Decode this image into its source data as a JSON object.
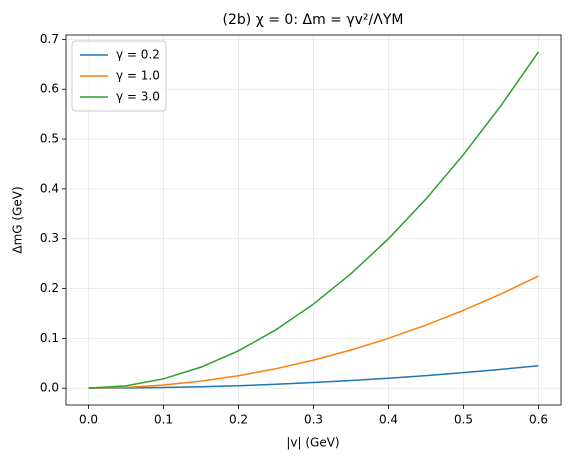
{
  "chart_data": {
    "type": "line",
    "title": "(2b) χ = 0: Δm = γv²/ΛYM",
    "xlabel": "|v| (GeV)",
    "ylabel": "ΔmG (GeV)",
    "x": [
      0,
      0.05,
      0.1,
      0.15,
      0.2,
      0.25,
      0.3,
      0.35,
      0.4,
      0.45,
      0.5,
      0.55,
      0.6
    ],
    "series": [
      {
        "name": "γ = 0.2",
        "color": "#1f77b4",
        "values": [
          0,
          0.0003,
          0.0013,
          0.0028,
          0.005,
          0.0078,
          0.0113,
          0.0153,
          0.02,
          0.0253,
          0.0313,
          0.0378,
          0.045
        ]
      },
      {
        "name": "γ = 1.0",
        "color": "#ff7f0e",
        "values": [
          0,
          0.0016,
          0.0063,
          0.0141,
          0.025,
          0.0391,
          0.0563,
          0.0766,
          0.1,
          0.1266,
          0.1563,
          0.1891,
          0.225
        ]
      },
      {
        "name": "γ = 3.0",
        "color": "#2ca02c",
        "values": [
          0,
          0.0047,
          0.0188,
          0.0422,
          0.075,
          0.1172,
          0.1688,
          0.2297,
          0.3,
          0.3797,
          0.4688,
          0.5672,
          0.675
        ]
      }
    ],
    "xlim": [
      -0.03,
      0.63
    ],
    "ylim": [
      -0.03375,
      0.70875
    ],
    "xticks": [
      {
        "value": 0,
        "label": "0.0"
      },
      0.1,
      0.2,
      0.3,
      0.4,
      0.5,
      0.6
    ],
    "yticks": [
      {
        "value": 0,
        "label": "0.0"
      },
      0.1,
      0.2,
      0.3,
      0.4,
      0.5,
      0.6,
      0.7
    ],
    "grid": true,
    "legend": "upper-left"
  }
}
